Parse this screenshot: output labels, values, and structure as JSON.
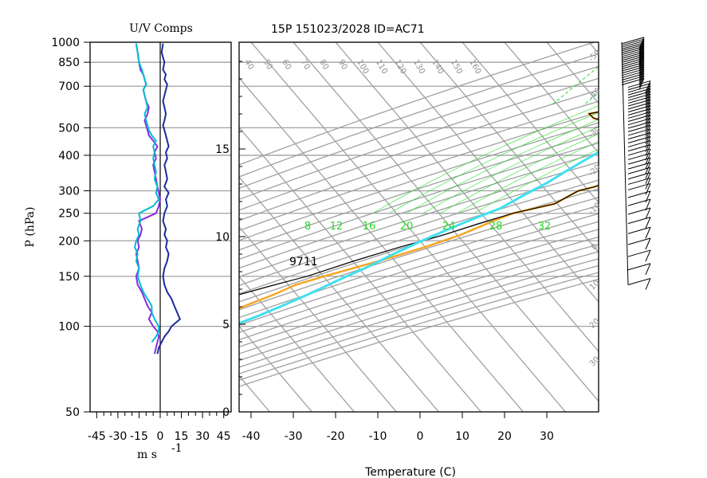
{
  "header": {
    "left_title": "U/V Comps",
    "main_title": "15P 151023/2028 ID=AC71"
  },
  "left_panel": {
    "ylabel": "P (hPa)",
    "xlabel": "m s",
    "xlabel_exp": "-1",
    "x_ticks": [
      "-45",
      "-30",
      "-15",
      "0",
      "15",
      "30",
      "45"
    ]
  },
  "main_panel": {
    "xlabel": "Temperature (C)",
    "t_ticks": [
      "-40",
      "-30",
      "-20",
      "-10",
      "0",
      "10",
      "20",
      "30"
    ],
    "height_ticks": [
      "0",
      "5",
      "10",
      "15"
    ],
    "height_values": [
      0,
      5,
      10,
      15
    ],
    "annotation": "9711",
    "mixing_ratio_labels": [
      "8",
      "12",
      "16",
      "20",
      "24",
      "28",
      "32"
    ],
    "potential_temp_labels": [
      "40",
      "50",
      "60",
      "70",
      "80",
      "90",
      "100",
      "110",
      "120",
      "130",
      "140",
      "150",
      "160"
    ],
    "right_temp_labels": [
      "-50",
      "-40",
      "-30",
      "-20",
      "-10",
      "0",
      "10",
      "20",
      "30"
    ]
  },
  "chart_data": [
    {
      "type": "line",
      "title": "U/V Comps",
      "xlabel": "m s -1",
      "ylabel": "P (hPa)",
      "xlim": [
        -50,
        50
      ],
      "ylim": [
        1000,
        50
      ],
      "y_scale": "log",
      "y_ticks": [
        50,
        100,
        150,
        200,
        250,
        300,
        400,
        500,
        700,
        850,
        1000
      ],
      "x_ticks": [
        -45,
        -30,
        -15,
        0,
        15,
        30,
        45
      ],
      "grid": true,
      "series": [
        {
          "color": "#1a2b9a",
          "x": [
            -2,
            -1,
            1,
            3,
            6,
            8,
            14,
            12,
            10,
            8,
            5,
            3,
            2,
            3,
            5,
            6,
            4,
            5,
            3,
            4,
            2,
            3,
            5,
            4,
            6,
            3,
            5,
            4,
            3,
            5,
            4,
            6,
            5,
            4,
            3,
            2,
            3,
            4,
            3,
            2,
            3,
            4,
            5,
            3,
            4,
            2,
            3,
            1,
            2
          ],
          "y": [
            80,
            84,
            88,
            92,
            96,
            100,
            106,
            112,
            118,
            125,
            132,
            140,
            150,
            160,
            170,
            180,
            190,
            200,
            210,
            220,
            235,
            250,
            265,
            280,
            295,
            310,
            330,
            350,
            370,
            390,
            410,
            430,
            450,
            470,
            490,
            510,
            530,
            560,
            590,
            620,
            650,
            680,
            710,
            740,
            770,
            800,
            850,
            920,
            990
          ]
        },
        {
          "color": "#8a2be2",
          "x": [
            -4,
            -3,
            -2,
            -1,
            -2,
            -5,
            -8,
            -6,
            -9,
            -11,
            -13,
            -16,
            -17,
            -15,
            -16,
            -17,
            -15,
            -16,
            -14,
            -13,
            -15,
            -3,
            -1,
            0,
            -1,
            -2,
            -3,
            -4,
            -5,
            -3,
            -4,
            -2,
            -5,
            -8,
            -9,
            -10,
            -11,
            -9,
            -8,
            -10,
            -11,
            -12,
            -10,
            -11,
            -12,
            -14,
            -15,
            -16,
            -17
          ],
          "y": [
            80,
            84,
            88,
            92,
            96,
            100,
            106,
            112,
            118,
            125,
            132,
            140,
            150,
            160,
            170,
            180,
            190,
            200,
            210,
            220,
            235,
            250,
            265,
            280,
            295,
            310,
            330,
            350,
            370,
            390,
            410,
            430,
            450,
            470,
            490,
            510,
            530,
            560,
            590,
            620,
            650,
            680,
            710,
            740,
            770,
            800,
            850,
            920,
            990
          ]
        },
        {
          "color": "#00bcd4",
          "x": [
            -6,
            -3,
            -1,
            -1,
            -4,
            -6,
            -6,
            -9,
            -12,
            -14,
            -16,
            -15,
            -17,
            -16,
            -18,
            -17,
            -15,
            -16,
            -14,
            -15,
            -5,
            -1,
            -3,
            -2,
            -4,
            -3,
            -4,
            -5,
            -4,
            -5,
            -3,
            -6,
            -8,
            -9,
            -10,
            -11,
            -9,
            -10,
            -11,
            -12,
            -10,
            -11,
            -12,
            -13,
            -15,
            -16,
            -17
          ],
          "y": [
            88,
            92,
            96,
            100,
            106,
            112,
            118,
            125,
            132,
            140,
            150,
            160,
            170,
            180,
            190,
            200,
            210,
            220,
            235,
            250,
            265,
            280,
            295,
            310,
            330,
            350,
            370,
            390,
            410,
            430,
            450,
            470,
            490,
            510,
            530,
            560,
            590,
            620,
            650,
            680,
            710,
            740,
            770,
            800,
            850,
            920,
            990
          ]
        }
      ]
    },
    {
      "type": "line",
      "title": "15P 151023/2028 ID=AC71",
      "xlabel": "Temperature (C)",
      "ylabel": "",
      "xlim": [
        -45,
        40
      ],
      "y_scale": "log",
      "ylim": [
        1000,
        50
      ],
      "skew": true,
      "series": [
        {
          "color": "#f5a623",
          "x": [
            24,
            22,
            20,
            18,
            16,
            14,
            12,
            10,
            8,
            6,
            4,
            2,
            -5,
            -20,
            -18,
            -10,
            -2,
            2,
            6,
            10,
            13,
            12,
            8,
            4,
            0,
            -4,
            -7,
            -8,
            -9,
            -10,
            -18,
            -22,
            -26,
            -32,
            -40,
            -50,
            -55,
            -58,
            -62,
            -66,
            -70,
            -72,
            -73
          ],
          "y": [
            1000,
            960,
            920,
            880,
            840,
            800,
            770,
            740,
            720,
            700,
            680,
            660,
            630,
            560,
            540,
            510,
            490,
            470,
            450,
            430,
            410,
            390,
            370,
            350,
            330,
            310,
            300,
            290,
            280,
            270,
            250,
            230,
            210,
            190,
            170,
            150,
            140,
            130,
            120,
            110,
            100,
            90,
            80
          ]
        },
        {
          "color": "#000000",
          "x": [
            28,
            25,
            22,
            20,
            17,
            15,
            12,
            10,
            8,
            6,
            4,
            2,
            -5,
            -20,
            -18,
            -10,
            -2,
            2,
            6,
            10,
            13,
            12,
            8,
            4,
            0,
            -4,
            -7,
            -8,
            -9,
            -10,
            -18,
            -24,
            -30,
            -38,
            -46,
            -54,
            -60,
            -66,
            -72,
            -78,
            -82,
            -86,
            -90
          ],
          "y": [
            1000,
            960,
            920,
            880,
            840,
            800,
            770,
            740,
            720,
            700,
            680,
            660,
            630,
            560,
            540,
            510,
            490,
            470,
            450,
            430,
            410,
            390,
            370,
            350,
            330,
            310,
            300,
            290,
            280,
            270,
            250,
            230,
            210,
            190,
            170,
            150,
            140,
            130,
            120,
            110,
            100,
            90,
            80
          ]
        },
        {
          "color": "#40e0f0",
          "x": [
            26,
            24,
            22,
            20,
            18,
            16,
            14,
            12,
            10,
            8,
            6,
            4,
            2,
            0,
            -2,
            -4,
            -6,
            -8,
            -10,
            -12,
            -14,
            -16,
            -18,
            -20,
            -22,
            -24,
            -26,
            -28,
            -30,
            -34,
            -38,
            -42,
            -46,
            -50,
            -54,
            -58,
            -62,
            -66,
            -70,
            -74
          ],
          "y": [
            1000,
            960,
            920,
            880,
            840,
            800,
            770,
            740,
            710,
            680,
            650,
            620,
            590,
            560,
            530,
            500,
            470,
            440,
            410,
            380,
            350,
            320,
            300,
            280,
            260,
            250,
            240,
            230,
            220,
            200,
            180,
            160,
            145,
            130,
            118,
            108,
            100,
            92,
            85,
            80
          ]
        }
      ]
    }
  ]
}
